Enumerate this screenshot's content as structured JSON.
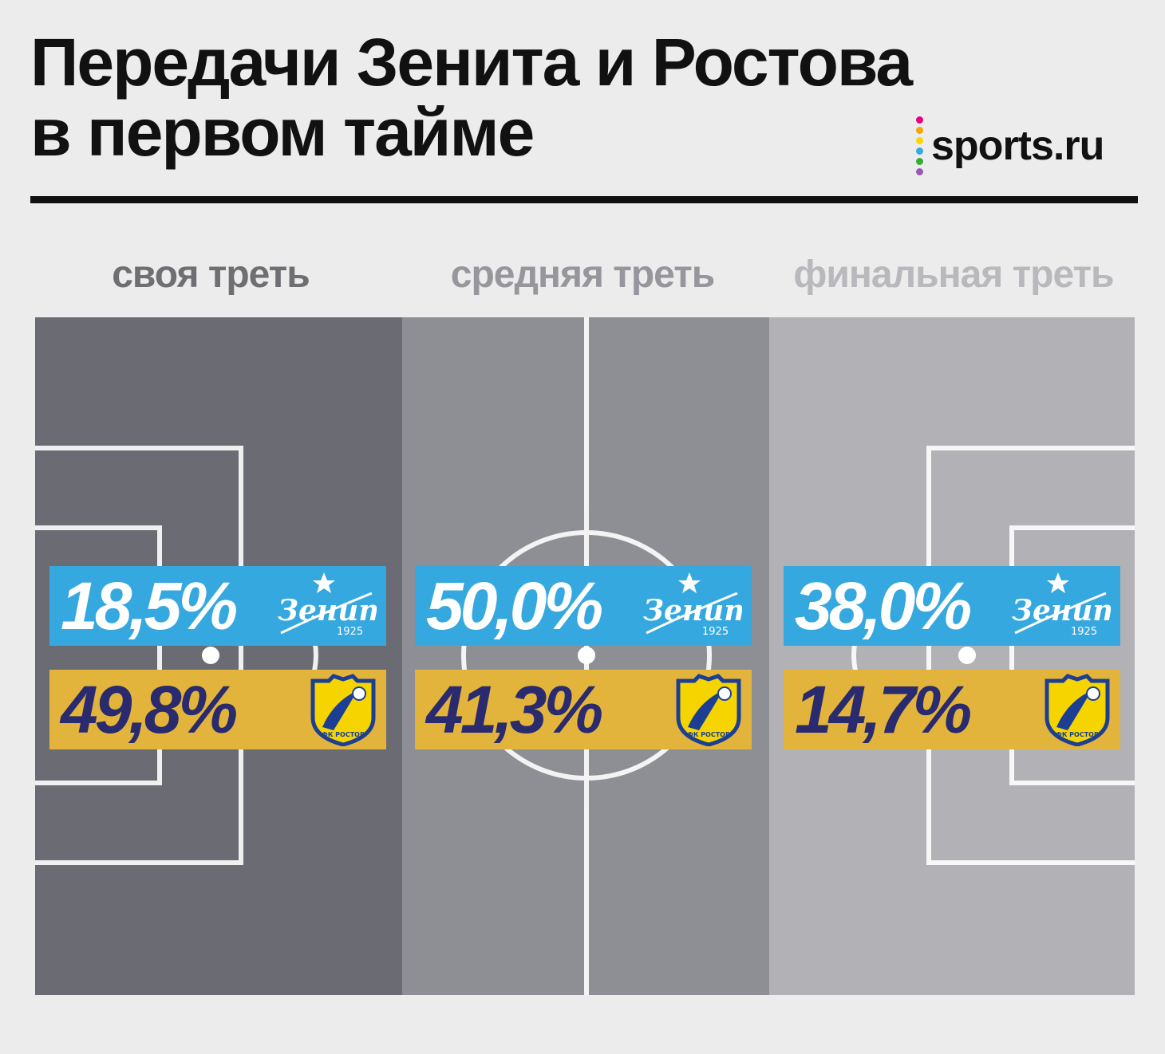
{
  "title": {
    "line1": "Передачи Зенита и Ростова",
    "line2": "в первом тайме"
  },
  "brand": {
    "name": "sports.ru",
    "dot_colors": [
      "#e6007e",
      "#f7a600",
      "#ffd500",
      "#36a9e1",
      "#3aaa35",
      "#9b59b6"
    ]
  },
  "teams": {
    "zenit": {
      "logo_icon": "zenit-logo-icon",
      "logo_text": "Зенит",
      "logo_year": "1925",
      "color": "#35a8e0"
    },
    "rostov": {
      "logo_icon": "rostov-crest-icon",
      "logo_text": "ФК РОСТОВ",
      "color": "#e3b43b"
    }
  },
  "zones": [
    {
      "label": "своя треть",
      "label_color": "#6e6e73",
      "fill": "#6b6b73",
      "zenit": "18,5%",
      "rostov": "49,8%"
    },
    {
      "label": "средняя треть",
      "label_color": "#96969c",
      "fill": "#8e8e95",
      "zenit": "50,0%",
      "rostov": "41,3%"
    },
    {
      "label": "финальная треть",
      "label_color": "#b8b8bd",
      "fill": "#b1b1b6",
      "zenit": "38,0%",
      "rostov": "14,7%"
    }
  ]
}
